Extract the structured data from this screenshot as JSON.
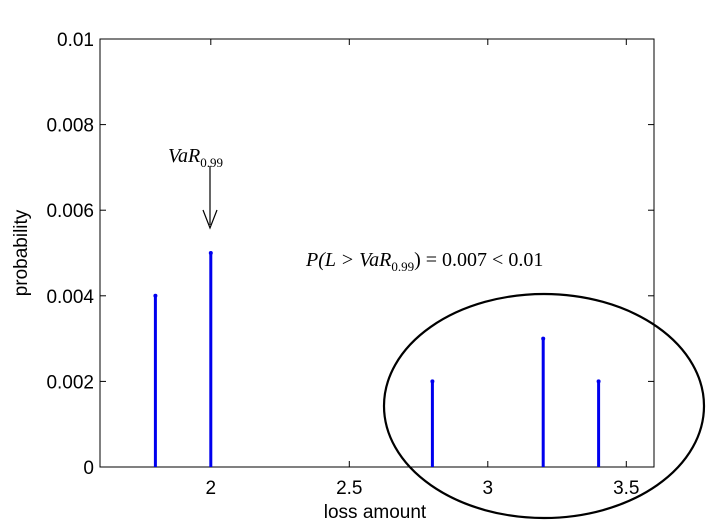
{
  "chart_data": {
    "type": "stem",
    "title": "",
    "xlabel": "loss amount",
    "ylabel": "probability",
    "xlim": [
      1.6,
      3.6
    ],
    "ylim": [
      0,
      0.01
    ],
    "xticks": [
      "2",
      "2.5",
      "3",
      "3.5"
    ],
    "xtick_values": [
      2,
      2.5,
      3,
      3.5
    ],
    "yticks": [
      "0",
      "0.002",
      "0.004",
      "0.006",
      "0.008",
      "0.01"
    ],
    "ytick_values": [
      0,
      0.002,
      0.004,
      0.006,
      0.008,
      0.01
    ],
    "series": [
      {
        "x": [
          1.8,
          2.0,
          2.8,
          3.2,
          3.4
        ],
        "values": [
          0.004,
          0.005,
          0.002,
          0.003,
          0.002
        ],
        "color": "#0000ee"
      }
    ],
    "annotations": {
      "var_label": {
        "main": "VaR",
        "sub": "0.99"
      },
      "prob_label": {
        "prefix": "P(L > VaR",
        "sub": "0.99",
        "suffix": ") = 0.007 < 0.01"
      }
    },
    "grid": false,
    "box": true
  }
}
